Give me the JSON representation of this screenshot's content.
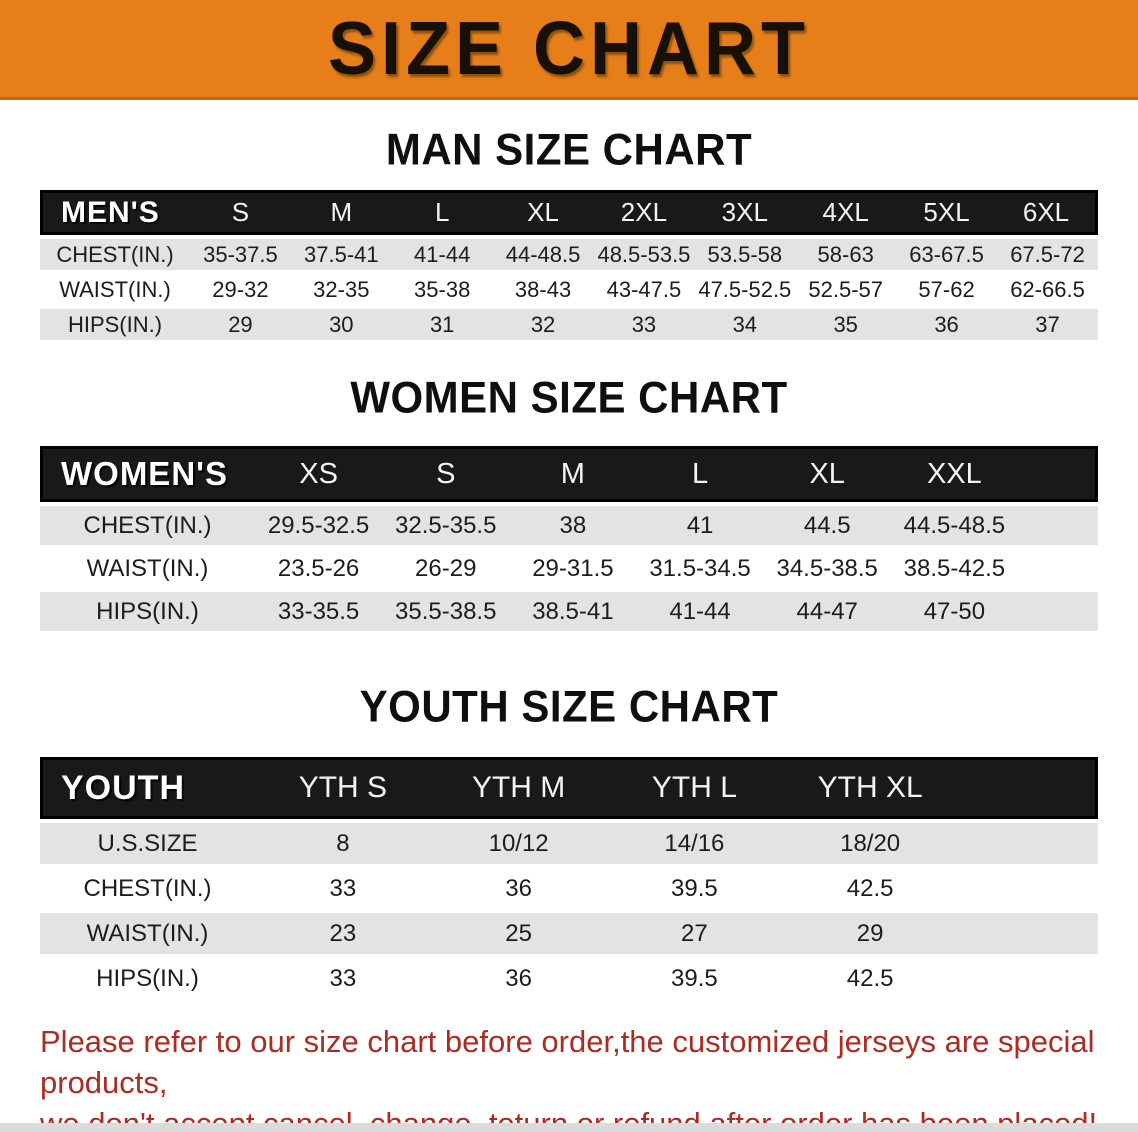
{
  "banner": {
    "title": "SIZE CHART"
  },
  "colors": {
    "banner_bg": "#E67F19",
    "table_header_bg": "#191919",
    "row_stripe": "#E3E3E4",
    "notice_text": "#AC2B23"
  },
  "sections": [
    {
      "id": "men",
      "title": "MAN SIZE CHART",
      "corner_label": "MEN'S",
      "columns": [
        "S",
        "M",
        "L",
        "XL",
        "2XL",
        "3XL",
        "4XL",
        "5XL",
        "6XL"
      ],
      "rows": [
        {
          "label": "CHEST(IN.)",
          "values": [
            "35-37.5",
            "37.5-41",
            "41-44",
            "44-48.5",
            "48.5-53.5",
            "53.5-58",
            "58-63",
            "63-67.5",
            "67.5-72"
          ]
        },
        {
          "label": "WAIST(IN.)",
          "values": [
            "29-32",
            "32-35",
            "35-38",
            "38-43",
            "43-47.5",
            "47.5-52.5",
            "52.5-57",
            "57-62",
            "62-66.5"
          ]
        },
        {
          "label": "HIPS(IN.)",
          "values": [
            "29",
            "30",
            "31",
            "32",
            "33",
            "34",
            "35",
            "36",
            "37"
          ]
        }
      ]
    },
    {
      "id": "women",
      "title": "WOMEN SIZE CHART",
      "corner_label": "WOMEN'S",
      "columns": [
        "XS",
        "S",
        "M",
        "L",
        "XL",
        "XXL"
      ],
      "rows": [
        {
          "label": "CHEST(IN.)",
          "values": [
            "29.5-32.5",
            "32.5-35.5",
            "38",
            "41",
            "44.5",
            "44.5-48.5"
          ]
        },
        {
          "label": "WAIST(IN.)",
          "values": [
            "23.5-26",
            "26-29",
            "29-31.5",
            "31.5-34.5",
            "34.5-38.5",
            "38.5-42.5"
          ]
        },
        {
          "label": "HIPS(IN.)",
          "values": [
            "33-35.5",
            "35.5-38.5",
            "38.5-41",
            "41-44",
            "44-47",
            "47-50"
          ]
        }
      ]
    },
    {
      "id": "youth",
      "title": "YOUTH SIZE CHART",
      "corner_label": "YOUTH",
      "columns": [
        "YTH S",
        "YTH M",
        "YTH L",
        "YTH XL"
      ],
      "rows": [
        {
          "label": "U.S.SIZE",
          "values": [
            "8",
            "10/12",
            "14/16",
            "18/20"
          ]
        },
        {
          "label": "CHEST(IN.)",
          "values": [
            "33",
            "36",
            "39.5",
            "42.5"
          ]
        },
        {
          "label": "WAIST(IN.)",
          "values": [
            "23",
            "25",
            "27",
            "29"
          ]
        },
        {
          "label": "HIPS(IN.)",
          "values": [
            "33",
            "36",
            "39.5",
            "42.5"
          ]
        }
      ]
    }
  ],
  "footer": {
    "line1": "Please refer to our size chart before order,the customized jerseys are special products,",
    "line2": "we don't accept cancel, change, teturn or refund after order has been placed!"
  }
}
